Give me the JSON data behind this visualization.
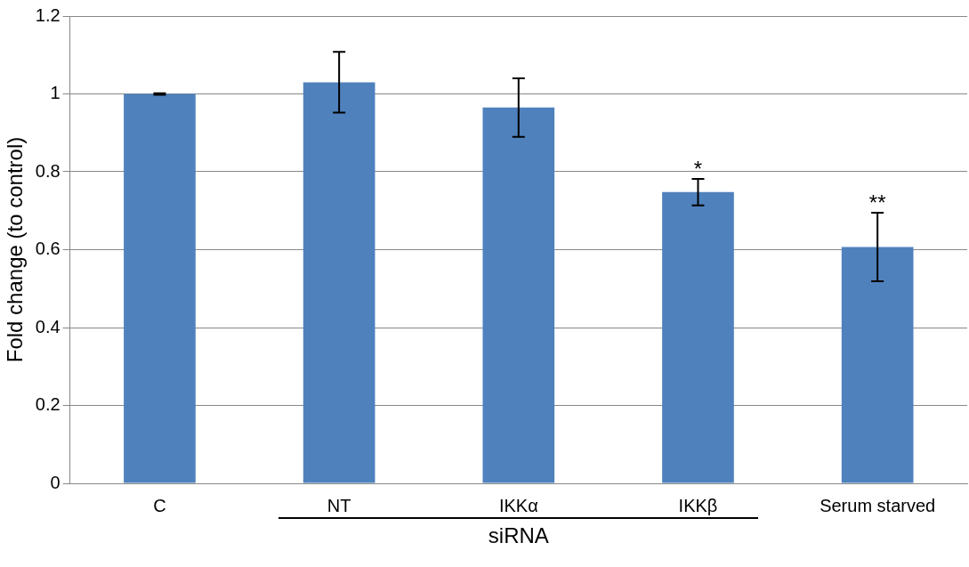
{
  "chart_data": {
    "type": "bar",
    "ylabel": "Fold change (to control)",
    "categories": [
      "C",
      "NT",
      "IKKα",
      "IKKβ",
      "Serum starved"
    ],
    "values": [
      1.0,
      1.03,
      0.965,
      0.748,
      0.607
    ],
    "errors": [
      0.002,
      0.078,
      0.075,
      0.034,
      0.088
    ],
    "color": "#4f81bd",
    "ylim": [
      0,
      1.2
    ],
    "yticks": [
      0,
      0.2,
      0.4,
      0.6,
      0.8,
      1,
      1.2
    ],
    "grid": "y",
    "legend": false,
    "annotations": [
      "*",
      "**",
      "siRNA"
    ]
  }
}
